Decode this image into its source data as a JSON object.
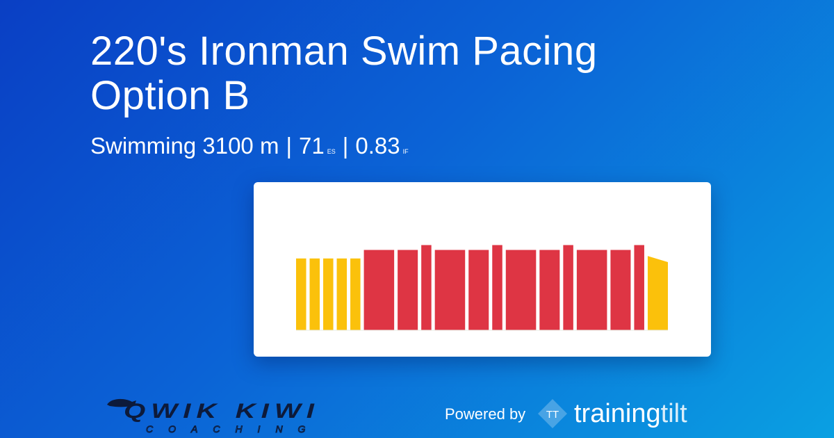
{
  "workout": {
    "title": "220's Ironman Swim Pacing Option B",
    "sport": "Swimming",
    "distance": "3100 m",
    "score": "71",
    "score_unit": "ES",
    "intensity": "0.83",
    "intensity_unit": "IF",
    "separator": "|"
  },
  "branding": {
    "coach_logo_text": "QWIK KIWI",
    "coach_logo_subtext": "COACHING",
    "powered_by": "Powered by",
    "platform_mark": "TT",
    "platform_name_part1": "training",
    "platform_name_part2": "tilt"
  },
  "colors": {
    "easy": "#fbc10b",
    "hard": "#de3544",
    "background_start": "#0a3fc4",
    "background_end": "#0aa0e2"
  },
  "chart_data": {
    "type": "bar",
    "title": "",
    "xlabel": "",
    "ylabel": "",
    "grid": false,
    "ylim": [
      0,
      1
    ],
    "bars": [
      {
        "zone": "easy",
        "duration": 1,
        "intensity": 0.59,
        "intensity_end": 0.59
      },
      {
        "zone": "easy",
        "duration": 1,
        "intensity": 0.59,
        "intensity_end": 0.59
      },
      {
        "zone": "easy",
        "duration": 1,
        "intensity": 0.59,
        "intensity_end": 0.59
      },
      {
        "zone": "easy",
        "duration": 1,
        "intensity": 0.59,
        "intensity_end": 0.59
      },
      {
        "zone": "easy",
        "duration": 1,
        "intensity": 0.59,
        "intensity_end": 0.59
      },
      {
        "zone": "hard",
        "duration": 3,
        "intensity": 0.66,
        "intensity_end": 0.66
      },
      {
        "zone": "hard",
        "duration": 2,
        "intensity": 0.66,
        "intensity_end": 0.66
      },
      {
        "zone": "hard",
        "duration": 1,
        "intensity": 0.7,
        "intensity_end": 0.7
      },
      {
        "zone": "hard",
        "duration": 3,
        "intensity": 0.66,
        "intensity_end": 0.66
      },
      {
        "zone": "hard",
        "duration": 2,
        "intensity": 0.66,
        "intensity_end": 0.66
      },
      {
        "zone": "hard",
        "duration": 1,
        "intensity": 0.7,
        "intensity_end": 0.7
      },
      {
        "zone": "hard",
        "duration": 3,
        "intensity": 0.66,
        "intensity_end": 0.66
      },
      {
        "zone": "hard",
        "duration": 2,
        "intensity": 0.66,
        "intensity_end": 0.66
      },
      {
        "zone": "hard",
        "duration": 1,
        "intensity": 0.7,
        "intensity_end": 0.7
      },
      {
        "zone": "hard",
        "duration": 3,
        "intensity": 0.66,
        "intensity_end": 0.66
      },
      {
        "zone": "hard",
        "duration": 2,
        "intensity": 0.66,
        "intensity_end": 0.66
      },
      {
        "zone": "hard",
        "duration": 1,
        "intensity": 0.7,
        "intensity_end": 0.7
      },
      {
        "zone": "easy",
        "duration": 2,
        "intensity": 0.61,
        "intensity_end": 0.56
      }
    ]
  }
}
